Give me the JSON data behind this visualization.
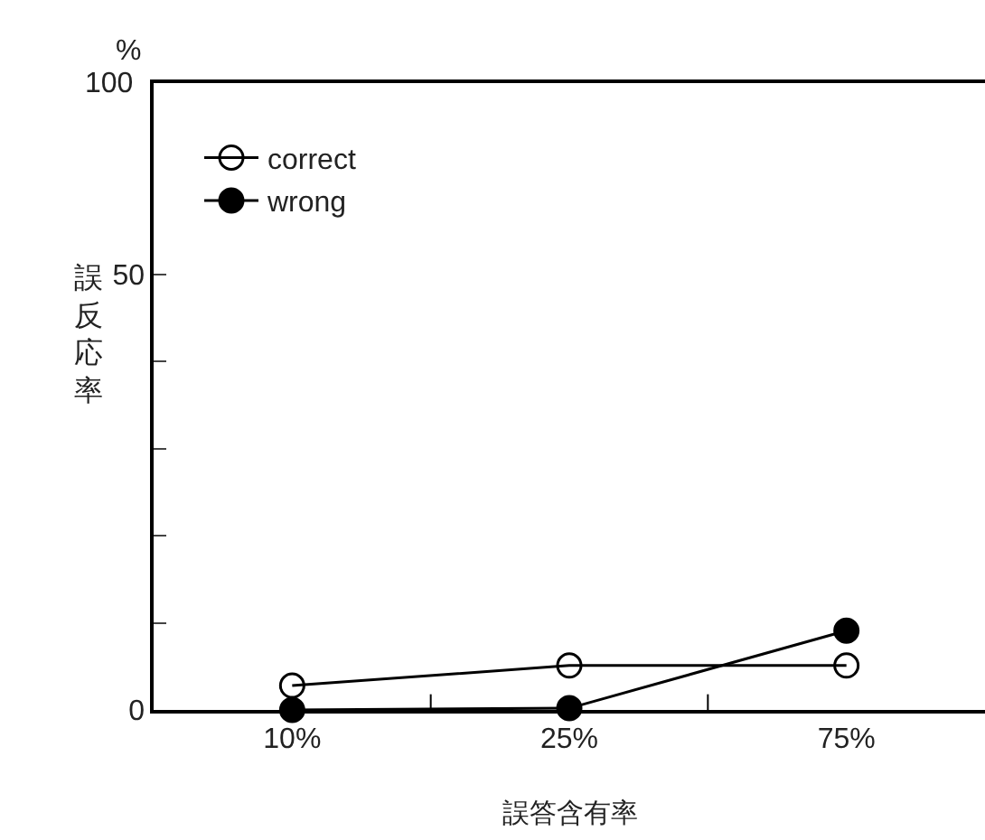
{
  "chart_data": {
    "type": "line",
    "categories": [
      "10%",
      "25%",
      "75%"
    ],
    "xlabel": "誤答含有率",
    "ylabel": "誤反応率",
    "ylim": [
      0,
      72
    ],
    "yticks": [
      0,
      {
        "value": 10,
        "label": null
      },
      {
        "value": 20,
        "label": null
      },
      {
        "value": 30,
        "label": null
      },
      {
        "value": 40,
        "label": null
      },
      50
    ],
    "legend": "top left",
    "marker": "circle",
    "line_style": "solid",
    "annotations": [
      "%",
      "100"
    ],
    "series": [
      {
        "name": "correct",
        "color": "#000000",
        "values": [
          2.8,
          5.1,
          5.1
        ]
      },
      {
        "name": "wrong",
        "color": "#000000",
        "values": [
          0,
          0.2,
          9.1
        ]
      }
    ]
  }
}
